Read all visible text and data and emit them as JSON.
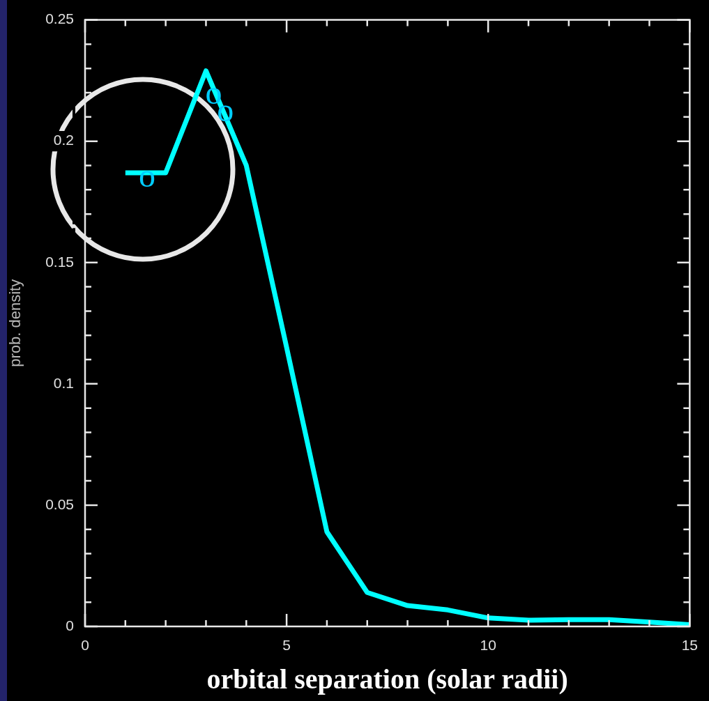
{
  "chart_data": {
    "type": "line",
    "xlabel": "orbital separation (solar radii)",
    "ylabel": "prob. density",
    "x": [
      1,
      2,
      3,
      4,
      5,
      6,
      7,
      8,
      9,
      10,
      11,
      12,
      13,
      14,
      15
    ],
    "series": [
      {
        "color": "#00ffff",
        "values": [
          0.187,
          0.187,
          0.229,
          0.19,
          0.115,
          0.039,
          0.014,
          0.0086,
          0.0068,
          0.0035,
          0.0026,
          0.0028,
          0.0028,
          0.0018,
          0.0007
        ]
      }
    ],
    "xlim": [
      0,
      15
    ],
    "xticks": [
      0,
      {
        "value": 1,
        "label": null
      },
      {
        "value": 2,
        "label": null
      },
      {
        "value": 3,
        "label": null
      },
      {
        "value": 4,
        "label": null
      },
      5,
      {
        "value": 6,
        "label": null
      },
      {
        "value": 7,
        "label": null
      },
      {
        "value": 8,
        "label": null
      },
      {
        "value": 9,
        "label": null
      },
      10,
      {
        "value": 11,
        "label": null
      },
      {
        "value": 12,
        "label": null
      },
      {
        "value": 13,
        "label": null
      },
      {
        "value": 14,
        "label": null
      },
      15
    ],
    "ylim": [
      0,
      0.25
    ],
    "yticks": [
      0,
      {
        "value": 0.01,
        "label": null
      },
      {
        "value": 0.02,
        "label": null
      },
      {
        "value": 0.03,
        "label": null
      },
      {
        "value": 0.04,
        "label": null
      },
      0.05,
      {
        "value": 0.06,
        "label": null
      },
      {
        "value": 0.07,
        "label": null
      },
      {
        "value": 0.08,
        "label": null
      },
      {
        "value": 0.09,
        "label": null
      },
      0.1,
      {
        "value": 0.11,
        "label": null
      },
      {
        "value": 0.12,
        "label": null
      },
      {
        "value": 0.13,
        "label": null
      },
      {
        "value": 0.14,
        "label": null
      },
      0.15,
      {
        "value": 0.16,
        "label": null
      },
      {
        "value": 0.17,
        "label": null
      },
      {
        "value": 0.18,
        "label": null
      },
      {
        "value": 0.19,
        "label": null
      },
      0.2,
      {
        "value": 0.21,
        "label": null
      },
      {
        "value": 0.22,
        "label": null
      },
      {
        "value": 0.23,
        "label": null
      },
      {
        "value": 0.24,
        "label": null
      },
      0.25
    ],
    "annotations": [
      {
        "text": "o",
        "x": 1.54,
        "y": 0.185
      },
      {
        "text": "o",
        "x": 3.19,
        "y": 0.219
      },
      {
        "text": "o",
        "x": 3.48,
        "y": 0.212
      }
    ],
    "grid": false,
    "legend": false,
    "marker": "none",
    "line_style": "solid"
  }
}
